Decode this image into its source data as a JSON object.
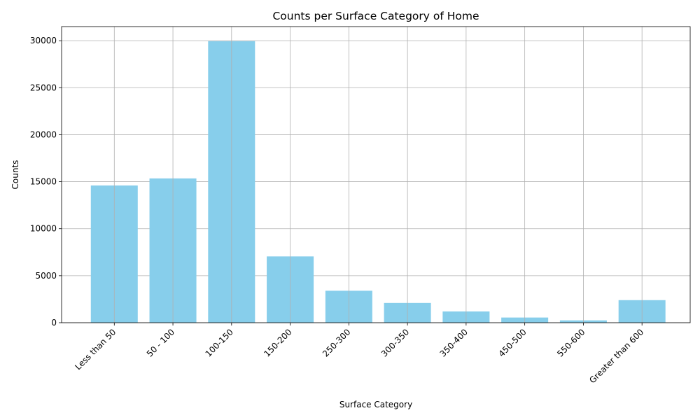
{
  "chart_data": {
    "type": "bar",
    "title": "Counts per Surface Category of Home",
    "xlabel": "Surface Category",
    "ylabel": "Counts",
    "categories": [
      "Less than 50",
      "50 - 100",
      "100-150",
      "150-200",
      "250-300",
      "300-350",
      "350-400",
      "450-500",
      "550-600",
      "Greater than 600"
    ],
    "values": [
      14600,
      15350,
      29950,
      7050,
      3400,
      2100,
      1200,
      550,
      250,
      2400
    ],
    "ylim": [
      0,
      31500
    ],
    "yticks": [
      0,
      5000,
      10000,
      15000,
      20000,
      25000,
      30000
    ],
    "grid": true,
    "bar_color": "#87ceeb",
    "grid_color": "#b0b0b0"
  }
}
